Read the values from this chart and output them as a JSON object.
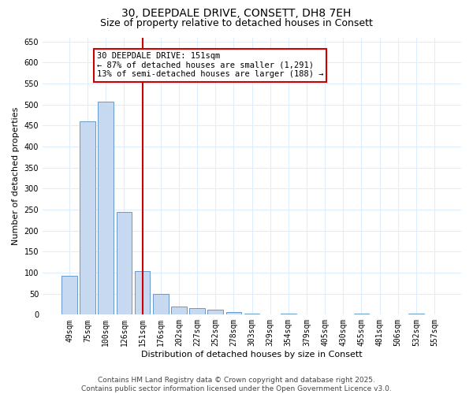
{
  "title": "30, DEEPDALE DRIVE, CONSETT, DH8 7EH",
  "subtitle": "Size of property relative to detached houses in Consett",
  "xlabel": "Distribution of detached houses by size in Consett",
  "ylabel": "Number of detached properties",
  "categories": [
    "49sqm",
    "75sqm",
    "100sqm",
    "126sqm",
    "151sqm",
    "176sqm",
    "202sqm",
    "227sqm",
    "252sqm",
    "278sqm",
    "303sqm",
    "329sqm",
    "354sqm",
    "379sqm",
    "405sqm",
    "430sqm",
    "455sqm",
    "481sqm",
    "506sqm",
    "532sqm",
    "557sqm"
  ],
  "values": [
    92,
    460,
    507,
    245,
    103,
    49,
    19,
    15,
    11,
    7,
    3,
    0,
    3,
    0,
    0,
    0,
    3,
    0,
    0,
    3,
    0
  ],
  "bar_color": "#c6d9f0",
  "bar_edge_color": "#6699cc",
  "vline_x_index": 4,
  "vline_color": "#cc0000",
  "annotation_text": "30 DEEPDALE DRIVE: 151sqm\n← 87% of detached houses are smaller (1,291)\n13% of semi-detached houses are larger (188) →",
  "annotation_box_color": "#ffffff",
  "annotation_box_edge_color": "#cc0000",
  "ylim": [
    0,
    660
  ],
  "yticks": [
    0,
    50,
    100,
    150,
    200,
    250,
    300,
    350,
    400,
    450,
    500,
    550,
    600,
    650
  ],
  "background_color": "#ffffff",
  "grid_color": "#ddeeff",
  "footer_line1": "Contains HM Land Registry data © Crown copyright and database right 2025.",
  "footer_line2": "Contains public sector information licensed under the Open Government Licence v3.0.",
  "title_fontsize": 10,
  "subtitle_fontsize": 9,
  "axis_label_fontsize": 8,
  "tick_fontsize": 7,
  "annotation_fontsize": 7.5,
  "footer_fontsize": 6.5
}
